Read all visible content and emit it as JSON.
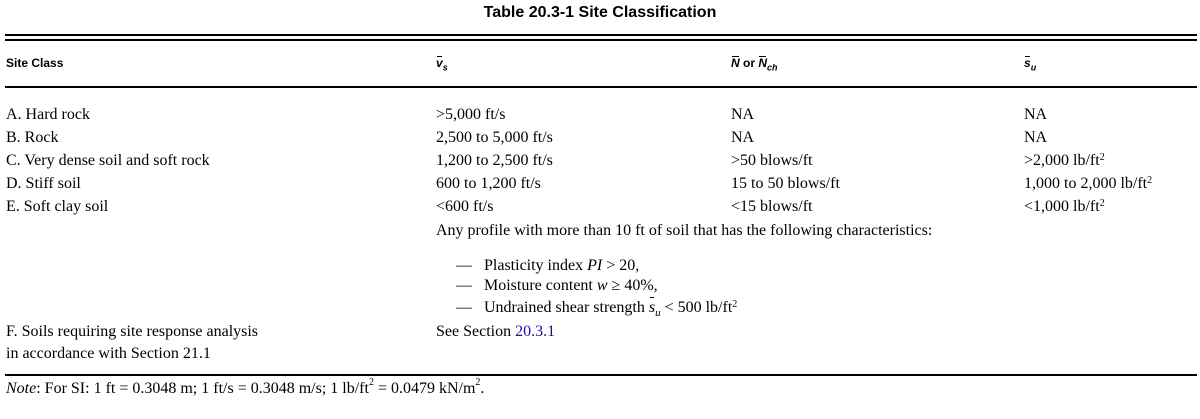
{
  "title": "Table 20.3-1 Site Classification",
  "headers": {
    "site_class": "Site Class",
    "vs_base": "v",
    "vs_sub": "s",
    "n_base": "N",
    "n_or": " or ",
    "nch_base": "N",
    "nch_sub": "ch",
    "su_base": "s",
    "su_sub": "u"
  },
  "rows": [
    {
      "site_class": "A. Hard rock",
      "vs": ">5,000 ft/s",
      "n": "NA",
      "su": "NA",
      "su_sup": ""
    },
    {
      "site_class": "B. Rock",
      "vs": "2,500 to 5,000 ft/s",
      "n": "NA",
      "su": "NA",
      "su_sup": ""
    },
    {
      "site_class": "C. Very dense soil and soft rock",
      "vs": "1,200 to 2,500 ft/s",
      "n": ">50 blows/ft",
      "su": ">2,000 lb/ft",
      "su_sup": "2"
    },
    {
      "site_class": "D. Stiff soil",
      "vs": "600 to 1,200 ft/s",
      "n": "15 to 50 blows/ft",
      "su": "1,000 to 2,000 lb/ft",
      "su_sup": "2"
    },
    {
      "site_class": "E. Soft clay soil",
      "vs": "<600 ft/s",
      "n": "<15 blows/ft",
      "su": "<1,000 lb/ft",
      "su_sup": "2"
    }
  ],
  "profile_intro": "Any profile with more than 10 ft of soil that has the following characteristics:",
  "characteristics": {
    "pi_text": "Plasticity index ",
    "pi_var": "PI",
    "pi_rest": " > 20,",
    "mc_text": "Moisture content ",
    "mc_var": "w",
    "mc_rest": " ≥ 40%,",
    "us_text": "Undrained shear strength ",
    "us_var": "s",
    "us_sub": "u",
    "us_rest": " < 500 lb/ft",
    "us_sup": "2",
    "dash": "—"
  },
  "row_f": {
    "line1": "F. Soils requiring site response analysis",
    "line2": "in accordance with Section 21.1",
    "see_text": "See Section ",
    "see_link": "20.3.1"
  },
  "note": {
    "label": "Note",
    "text": ": For SI: 1 ft = 0.3048 m; 1 ft/s = 0.3048 m/s; 1 lb/ft",
    "sup": "2",
    "text2": " = 0.0479 kN/m",
    "sup2": "2",
    "end": "."
  }
}
